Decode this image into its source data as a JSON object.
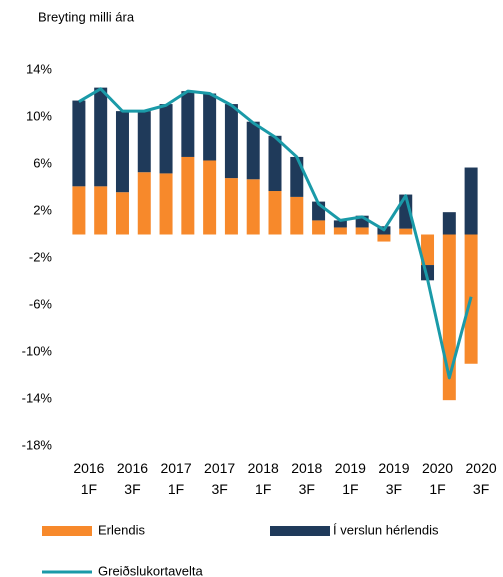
{
  "chart_data": {
    "type": "bar",
    "stacked": true,
    "ylabel": "Breyting milli ára",
    "categories": [
      "2016\n1F",
      null,
      "2016\n3F",
      null,
      "2017\n1F",
      null,
      "2017\n3F",
      null,
      "2018\n1F",
      null,
      "2018\n3F",
      null,
      "2019\n1F",
      null,
      "2019\n3F",
      null,
      "2020\n1F",
      null,
      "2020\n3F"
    ],
    "series": [
      {
        "name": "Erlendis",
        "color": "#f7892b",
        "type": "bar",
        "values": [
          4.1,
          4.1,
          3.6,
          5.3,
          5.2,
          6.6,
          6.3,
          4.8,
          4.7,
          3.7,
          3.2,
          1.2,
          0.6,
          0.6,
          -0.6,
          0.5,
          -2.6,
          -14.1,
          -11.0
        ]
      },
      {
        "name": "Í verslun hérlendis",
        "color": "#1f3a5a",
        "type": "bar",
        "values": [
          7.3,
          8.4,
          6.9,
          5.2,
          5.9,
          5.6,
          5.7,
          6.3,
          4.9,
          4.7,
          3.4,
          1.6,
          0.6,
          1.0,
          0.7,
          2.9,
          -1.3,
          1.9,
          5.7
        ]
      },
      {
        "name": "Greiðslukortavelta",
        "color": "#1a9aa8",
        "type": "line",
        "values": [
          11.3,
          12.4,
          10.5,
          10.5,
          11.0,
          12.2,
          12.0,
          11.0,
          9.5,
          8.3,
          6.6,
          2.6,
          1.2,
          1.5,
          0.4,
          3.3,
          -3.8,
          -12.2,
          -5.3
        ]
      }
    ],
    "ylim": [
      -18,
      14
    ],
    "yticks": [
      {
        "value": 14,
        "label": "14%"
      },
      {
        "value": 10,
        "label": "10%"
      },
      {
        "value": 6,
        "label": "6%"
      },
      {
        "value": 2,
        "label": "2%"
      },
      {
        "value": -2,
        "label": "-2%"
      },
      {
        "value": -6,
        "label": "-6%"
      },
      {
        "value": -10,
        "label": "-10%"
      },
      {
        "value": -14,
        "label": "-14%"
      },
      {
        "value": -18,
        "label": "-18%"
      }
    ],
    "grid": false
  }
}
